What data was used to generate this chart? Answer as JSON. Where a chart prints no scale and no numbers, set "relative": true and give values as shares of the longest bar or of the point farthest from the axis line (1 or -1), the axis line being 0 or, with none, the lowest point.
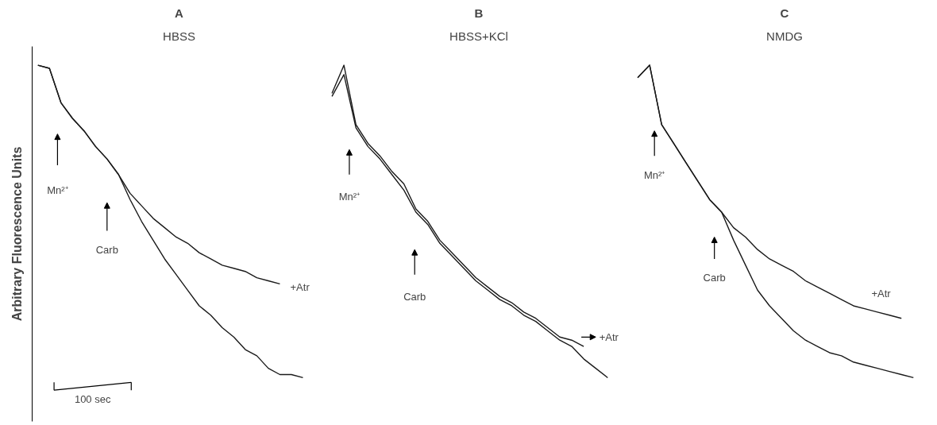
{
  "chart_data": [
    {
      "type": "line",
      "title": "A",
      "subtitle": "HBSS",
      "ylabel": "Arbitrary Fluorescence Units",
      "relative": true,
      "categories": [
        null,
        null,
        null,
        null,
        null,
        null,
        null,
        null,
        null,
        null,
        null,
        null,
        null,
        null,
        null,
        null,
        null,
        null,
        null,
        null,
        null,
        null,
        null,
        null
      ],
      "series": [
        {
          "color": "#1a1a1a",
          "values": [
            1.0,
            0.99,
            0.88,
            0.83,
            0.79,
            0.74,
            0.7,
            0.65,
            0.59,
            0.55,
            0.51,
            0.48,
            0.45,
            0.43,
            0.4,
            0.38,
            0.36,
            0.35,
            0.34,
            0.32,
            0.31,
            0.3,
            null,
            null
          ]
        },
        {
          "color": "#1a1a1a",
          "values": [
            1.0,
            0.99,
            0.88,
            0.83,
            0.79,
            0.74,
            0.7,
            0.65,
            0.57,
            0.5,
            0.44,
            0.38,
            0.33,
            0.28,
            0.23,
            0.2,
            0.16,
            0.13,
            0.09,
            0.07,
            0.03,
            0.01,
            0.01,
            0.0
          ]
        }
      ],
      "annotations": [
        "Mn²⁺",
        "Carb",
        "+Atr",
        "100 sec"
      ]
    },
    {
      "type": "line",
      "title": "B",
      "subtitle": "HBSS+KCl",
      "relative": true,
      "categories": [
        null,
        null,
        null,
        null,
        null,
        null,
        null,
        null,
        null,
        null,
        null,
        null,
        null,
        null,
        null,
        null,
        null,
        null,
        null,
        null,
        null,
        null,
        null,
        null
      ],
      "series": [
        {
          "color": "#1a1a1a",
          "values": [
            0.91,
            1.0,
            0.81,
            0.75,
            0.71,
            0.66,
            0.62,
            0.54,
            0.5,
            0.44,
            0.4,
            0.36,
            0.32,
            0.29,
            0.26,
            0.24,
            0.21,
            0.19,
            0.16,
            0.13,
            0.12,
            0.1,
            null,
            null
          ]
        },
        {
          "color": "#1a1a1a",
          "values": [
            0.9,
            0.97,
            0.8,
            0.74,
            0.7,
            0.65,
            0.6,
            0.53,
            0.49,
            0.43,
            0.39,
            0.35,
            0.31,
            0.28,
            0.25,
            0.23,
            0.2,
            0.18,
            0.15,
            0.12,
            0.1,
            0.06,
            0.03,
            0.0
          ]
        }
      ],
      "annotations": [
        "Mn²⁺",
        "Carb",
        "+Atr"
      ]
    },
    {
      "type": "line",
      "title": "C",
      "subtitle": "NMDG",
      "relative": true,
      "categories": [
        null,
        null,
        null,
        null,
        null,
        null,
        null,
        null,
        null,
        null,
        null,
        null,
        null,
        null,
        null,
        null,
        null,
        null,
        null,
        null,
        null,
        null,
        null,
        null
      ],
      "series": [
        {
          "color": "#1a1a1a",
          "values": [
            0.96,
            1.0,
            0.81,
            0.75,
            0.69,
            0.63,
            0.57,
            0.53,
            0.48,
            0.45,
            0.41,
            0.38,
            0.36,
            0.34,
            0.31,
            0.29,
            0.27,
            0.25,
            0.23,
            0.22,
            0.21,
            0.2,
            0.19,
            null
          ]
        },
        {
          "color": "#1a1a1a",
          "values": [
            0.96,
            1.0,
            0.81,
            0.75,
            0.69,
            0.63,
            0.57,
            0.53,
            0.44,
            0.36,
            0.28,
            0.23,
            0.19,
            0.15,
            0.12,
            0.1,
            0.08,
            0.07,
            0.05,
            0.04,
            0.03,
            0.02,
            0.01,
            0.0
          ]
        }
      ],
      "annotations": [
        "Mn²⁺",
        "Carb",
        "+Atr"
      ]
    }
  ]
}
